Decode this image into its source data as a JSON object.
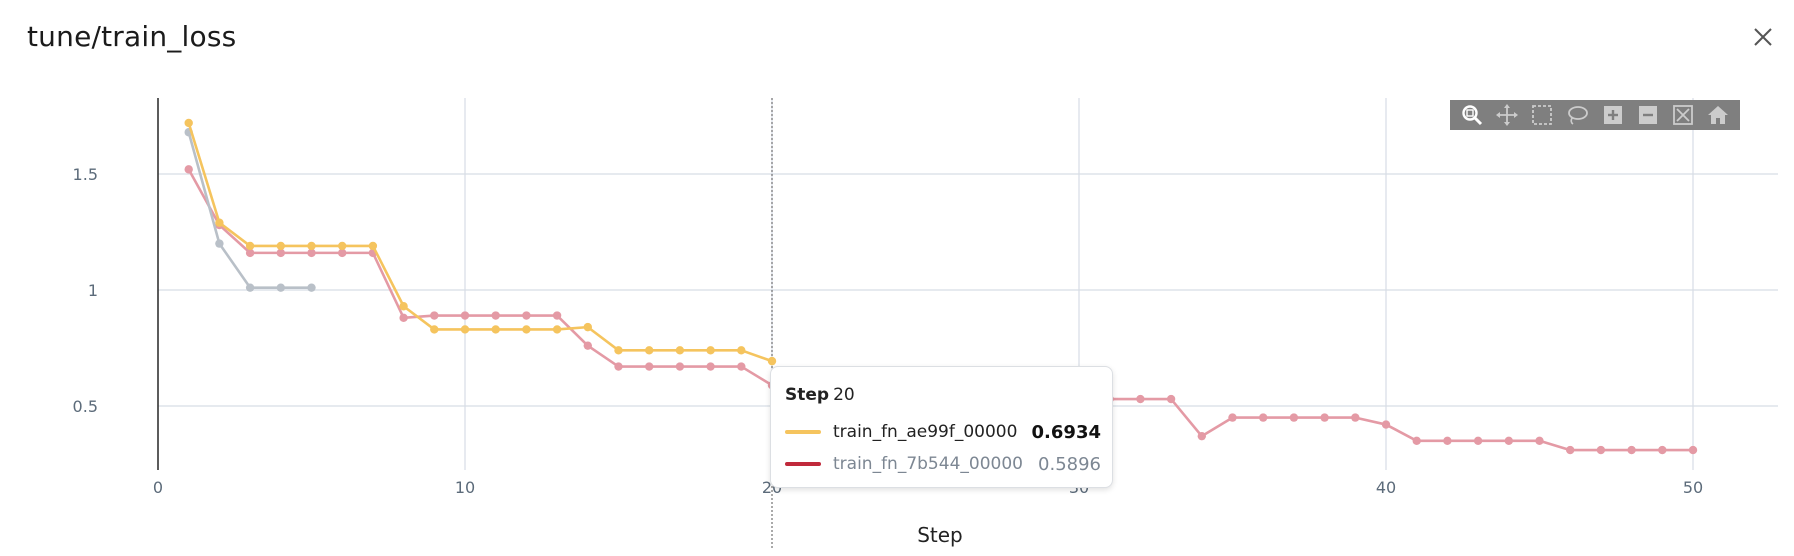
{
  "window": {
    "title": "tune/train_loss",
    "close_icon": "close-icon"
  },
  "toolbar": {
    "tools": [
      "zoom-icon",
      "pan-icon",
      "box-select-icon",
      "lasso-icon",
      "zoom-in-icon",
      "zoom-out-icon",
      "autoscale-icon",
      "reset-home-icon"
    ]
  },
  "tooltip": {
    "step_label": "Step",
    "step_value": "20",
    "rows": [
      {
        "name": "train_fn_ae99f_00000",
        "value": "0.6934",
        "color": "#f5c45e",
        "emphasis": true
      },
      {
        "name": "train_fn_7b544_00000",
        "value": "0.5896",
        "color": "#c0293b",
        "emphasis": false
      }
    ]
  },
  "chart_data": {
    "type": "line",
    "title": "tune/train_loss",
    "xlabel": "Step",
    "ylabel": "",
    "xlim": [
      0,
      52
    ],
    "ylim": [
      0.22,
      1.8
    ],
    "x_ticks": [
      0,
      10,
      20,
      30,
      40,
      50
    ],
    "y_ticks": [
      0.5,
      1,
      1.5
    ],
    "y_tick_labels": [
      "0.5",
      "1",
      "1.5"
    ],
    "grid": true,
    "hover_step": 20,
    "series": [
      {
        "name": "train_fn_7b544_00000",
        "color": "#e49aa5",
        "x": [
          1,
          2,
          3,
          4,
          5,
          6,
          7,
          8,
          9,
          10,
          11,
          12,
          13,
          14,
          15,
          16,
          17,
          18,
          19,
          20,
          21,
          22,
          23,
          24,
          25,
          26,
          27,
          28,
          29,
          30,
          31,
          32,
          33,
          34,
          35,
          36,
          37,
          38,
          39,
          40,
          41,
          42,
          43,
          44,
          45,
          46,
          47,
          48,
          49,
          50
        ],
        "y": [
          1.52,
          1.28,
          1.16,
          1.16,
          1.16,
          1.16,
          1.16,
          0.88,
          0.89,
          0.89,
          0.89,
          0.89,
          0.89,
          0.76,
          0.67,
          0.67,
          0.67,
          0.67,
          0.67,
          0.5896,
          0.56,
          0.55,
          0.55,
          0.54,
          0.54,
          0.53,
          0.53,
          0.53,
          0.53,
          0.53,
          0.53,
          0.53,
          0.53,
          0.37,
          0.45,
          0.45,
          0.45,
          0.45,
          0.45,
          0.42,
          0.35,
          0.35,
          0.35,
          0.35,
          0.35,
          0.31,
          0.31,
          0.31,
          0.31,
          0.31
        ]
      },
      {
        "name": "train_fn_ae99f_00000",
        "color": "#f5c45e",
        "x": [
          1,
          2,
          3,
          4,
          5,
          6,
          7,
          8,
          9,
          10,
          11,
          12,
          13,
          14,
          15,
          16,
          17,
          18,
          19,
          20
        ],
        "y": [
          1.72,
          1.29,
          1.19,
          1.19,
          1.19,
          1.19,
          1.19,
          0.93,
          0.83,
          0.83,
          0.83,
          0.83,
          0.83,
          0.84,
          0.74,
          0.74,
          0.74,
          0.74,
          0.74,
          0.6934
        ]
      },
      {
        "name": "",
        "color": "#b9c0c8",
        "x": [
          1,
          2,
          3,
          4,
          5
        ],
        "y": [
          1.68,
          1.2,
          1.01,
          1.01,
          1.01
        ]
      }
    ]
  }
}
